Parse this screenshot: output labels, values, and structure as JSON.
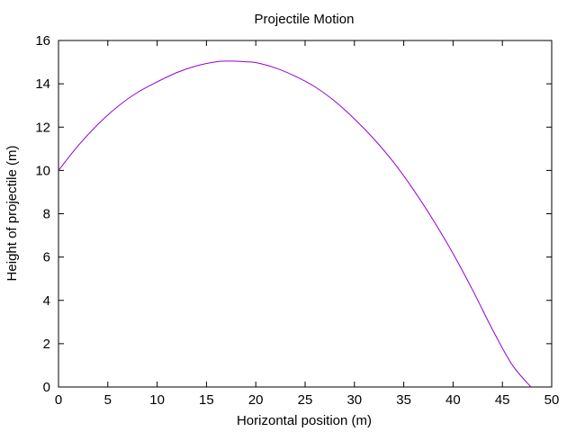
{
  "chart_data": {
    "type": "line",
    "title": "Projectile Motion",
    "xlabel": "Horizontal position (m)",
    "ylabel": "Height of projectile (m)",
    "xlim": [
      0,
      50
    ],
    "ylim": [
      0,
      16
    ],
    "xticks": [
      0,
      5,
      10,
      15,
      20,
      25,
      30,
      35,
      40,
      45,
      50
    ],
    "yticks": [
      0,
      2,
      4,
      6,
      8,
      10,
      12,
      14,
      16
    ],
    "grid": false,
    "legend": "none",
    "series": [
      {
        "color": "#9400d3",
        "x": [
          0,
          2,
          4,
          6,
          8,
          10,
          12,
          14,
          16,
          17.5,
          19,
          20,
          22,
          24,
          26,
          28,
          30,
          32,
          34,
          36,
          38,
          40,
          42,
          44,
          46,
          47.9
        ],
        "y": [
          10,
          11.15,
          12.13,
          12.95,
          13.6,
          14.09,
          14.52,
          14.83,
          15.02,
          15.05,
          15.02,
          14.98,
          14.73,
          14.35,
          13.86,
          13.2,
          12.38,
          11.44,
          10.36,
          9.1,
          7.7,
          6.16,
          4.46,
          2.65,
          1.02,
          0
        ]
      }
    ]
  }
}
